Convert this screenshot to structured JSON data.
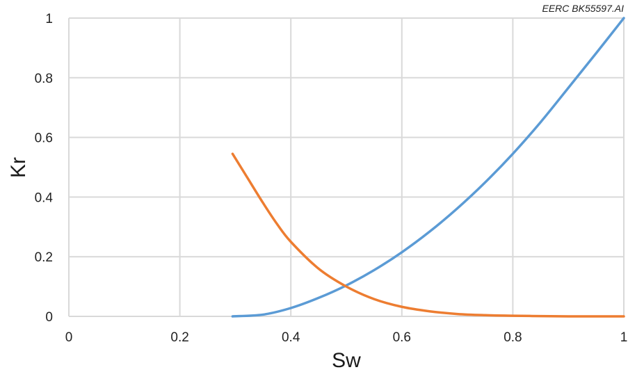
{
  "chart_data": {
    "type": "line",
    "annotation": "EERC BK55597.AI",
    "xlabel": "Sw",
    "ylabel": "Kr",
    "xlim": [
      0,
      1
    ],
    "ylim": [
      0,
      1
    ],
    "x_ticks": [
      "0",
      "0.2",
      "0.4",
      "0.6",
      "0.8",
      "1"
    ],
    "y_ticks": [
      "0",
      "0.2",
      "0.4",
      "0.6",
      "0.8",
      "1"
    ],
    "grid": true,
    "legend": "none",
    "series": [
      {
        "color": "#5b9bd5",
        "x": [
          0.295,
          0.35,
          0.4,
          0.45,
          0.5,
          0.55,
          0.6,
          0.65,
          0.7,
          0.75,
          0.8,
          0.85,
          0.9,
          0.95,
          1.0
        ],
        "y": [
          0.0,
          0.006,
          0.028,
          0.062,
          0.104,
          0.155,
          0.215,
          0.284,
          0.362,
          0.449,
          0.545,
          0.651,
          0.766,
          0.882,
          1.0
        ]
      },
      {
        "color": "#ed7d31",
        "x": [
          0.295,
          0.32,
          0.35,
          0.375,
          0.4,
          0.45,
          0.5,
          0.55,
          0.6,
          0.65,
          0.7,
          0.75,
          0.8,
          0.85,
          0.9,
          0.95,
          1.0
        ],
        "y": [
          0.545,
          0.47,
          0.38,
          0.31,
          0.25,
          0.16,
          0.1,
          0.058,
          0.032,
          0.017,
          0.008,
          0.004,
          0.002,
          0.001,
          0.0,
          0.0,
          0.0
        ]
      }
    ]
  }
}
